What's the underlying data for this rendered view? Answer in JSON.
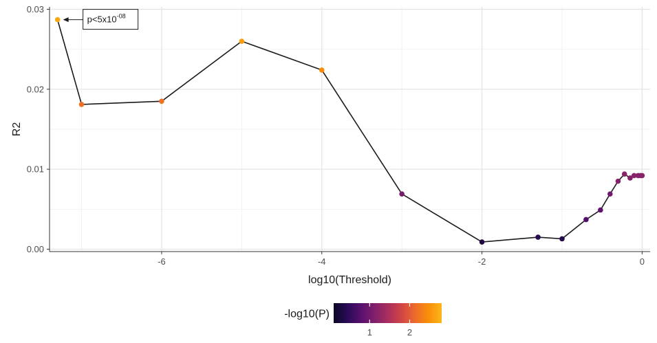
{
  "chart_data": {
    "type": "scatter",
    "xlabel": "log10(Threshold)",
    "ylabel": "R2",
    "xlim": [
      -7.4,
      0.1
    ],
    "ylim": [
      -0.0003,
      0.0303
    ],
    "x_ticks": [
      -6,
      -4,
      -2,
      0
    ],
    "x_tick_labels": [
      "-6",
      "-4",
      "-2",
      "0"
    ],
    "y_ticks": [
      0.0,
      0.01,
      0.02,
      0.03
    ],
    "y_tick_labels": [
      "0.00",
      "0.01",
      "0.02",
      "0.03"
    ],
    "grid": true,
    "line_color": "#1a1a1a",
    "points": [
      {
        "x": -7.3,
        "y": 0.0287,
        "neglog10p": 2.7
      },
      {
        "x": -7.0,
        "y": 0.0181,
        "neglog10p": 2.2
      },
      {
        "x": -6.0,
        "y": 0.0185,
        "neglog10p": 2.2
      },
      {
        "x": -5.0,
        "y": 0.026,
        "neglog10p": 2.6
      },
      {
        "x": -4.0,
        "y": 0.0224,
        "neglog10p": 2.45
      },
      {
        "x": -3.0,
        "y": 0.0069,
        "neglog10p": 1.05
      },
      {
        "x": -2.0,
        "y": 0.0009,
        "neglog10p": 0.3
      },
      {
        "x": -1.3,
        "y": 0.0015,
        "neglog10p": 0.4
      },
      {
        "x": -1.0,
        "y": 0.0013,
        "neglog10p": 0.35
      },
      {
        "x": -0.7,
        "y": 0.0037,
        "neglog10p": 0.75
      },
      {
        "x": -0.52,
        "y": 0.0049,
        "neglog10p": 0.85
      },
      {
        "x": -0.4,
        "y": 0.0069,
        "neglog10p": 1.0
      },
      {
        "x": -0.3,
        "y": 0.0085,
        "neglog10p": 1.15
      },
      {
        "x": -0.22,
        "y": 0.0094,
        "neglog10p": 1.2
      },
      {
        "x": -0.15,
        "y": 0.0089,
        "neglog10p": 1.15
      },
      {
        "x": -0.1,
        "y": 0.0092,
        "neglog10p": 1.18
      },
      {
        "x": -0.05,
        "y": 0.0092,
        "neglog10p": 1.18
      },
      {
        "x": -0.02,
        "y": 0.0092,
        "neglog10p": 1.18
      },
      {
        "x": 0.0,
        "y": 0.0092,
        "neglog10p": 1.18
      }
    ],
    "annotation": {
      "text_base": "p<5x10",
      "text_sup": "-08",
      "target_index": 0
    },
    "legend": {
      "title": "-log10(P)",
      "placement": "bottom",
      "range": [
        0.1,
        2.8
      ],
      "ticks": [
        1,
        2
      ],
      "tick_labels": [
        "1",
        "2"
      ],
      "colormap": "inferno",
      "stops": [
        "#0c0826",
        "#2a0b57",
        "#57106e",
        "#801f6c",
        "#a92e5e",
        "#cf4446",
        "#ec6a2c",
        "#f98e09",
        "#fbb61a"
      ]
    }
  }
}
